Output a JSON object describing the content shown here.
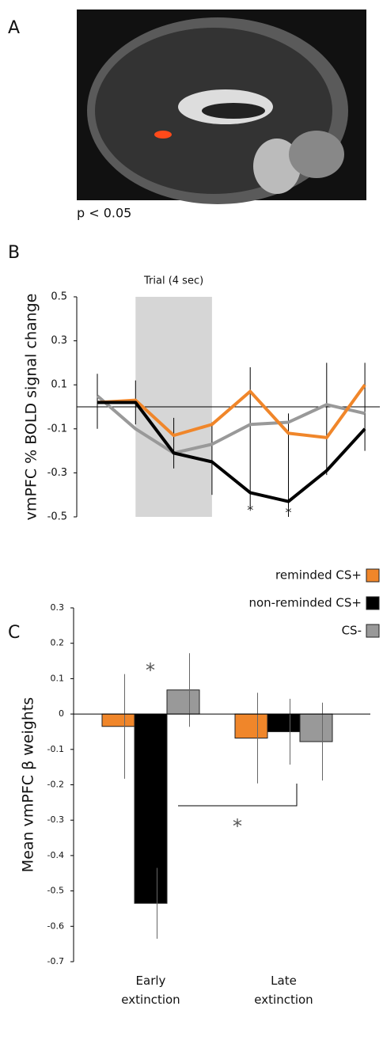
{
  "panel_labels": [
    "A",
    "B",
    "C"
  ],
  "image_caption": "p < 0.05",
  "chart_data": [
    {
      "type": "line",
      "ylabel": "vmPFC % BOLD signal change",
      "annotations": [
        "Trial (4 sec)",
        "*",
        "*"
      ],
      "categories": [
        null,
        null,
        null,
        null,
        null,
        null,
        null,
        null
      ],
      "ylim": [
        -0.5,
        0.5
      ],
      "yticks": [
        0.5,
        0.3,
        0.1,
        -0.1,
        -0.3,
        -0.5
      ],
      "series": [
        {
          "name": "reminded CS+",
          "color": "#f0862a",
          "values": [
            0.02,
            0.03,
            -0.13,
            -0.08,
            0.07,
            -0.12,
            -0.14,
            0.1
          ]
        },
        {
          "name": "non-reminded CS+",
          "color": "#000000",
          "values": [
            0.02,
            0.02,
            -0.21,
            -0.25,
            -0.39,
            -0.43,
            -0.29,
            -0.1
          ]
        },
        {
          "name": "CS-",
          "color": "#999999",
          "values": [
            0.05,
            -0.1,
            -0.21,
            -0.17,
            -0.08,
            -0.07,
            0.01,
            -0.03
          ]
        }
      ],
      "error_high": [
        0.15,
        0.12,
        -0.05,
        -0.07,
        0.18,
        -0.03,
        0.2,
        0.2
      ],
      "error_low": [
        -0.1,
        -0.08,
        -0.28,
        -0.4,
        -0.45,
        -0.5,
        -0.31,
        -0.2
      ]
    },
    {
      "type": "bar",
      "ylabel": "Mean vmPFC β weights",
      "annotations": [
        "*",
        "*"
      ],
      "categories": [
        "Early extinction",
        "Late extinction"
      ],
      "ylim": [
        -0.7,
        0.3
      ],
      "yticks": [
        0.3,
        0.2,
        0.1,
        0,
        -0.1,
        -0.2,
        -0.3,
        -0.4,
        -0.5,
        -0.6,
        -0.7
      ],
      "series": [
        {
          "name": "reminded CS+",
          "color": "#f0862a",
          "values": [
            -0.035,
            -0.068
          ],
          "errors": [
            0.148,
            0.128
          ]
        },
        {
          "name": "non-reminded CS+",
          "color": "#000000",
          "values": [
            -0.535,
            -0.05
          ],
          "errors": [
            0.1,
            0.093
          ]
        },
        {
          "name": "CS-",
          "color": "#999999",
          "values": [
            0.068,
            -0.078
          ],
          "errors": [
            0.104,
            0.11
          ]
        }
      ]
    }
  ]
}
